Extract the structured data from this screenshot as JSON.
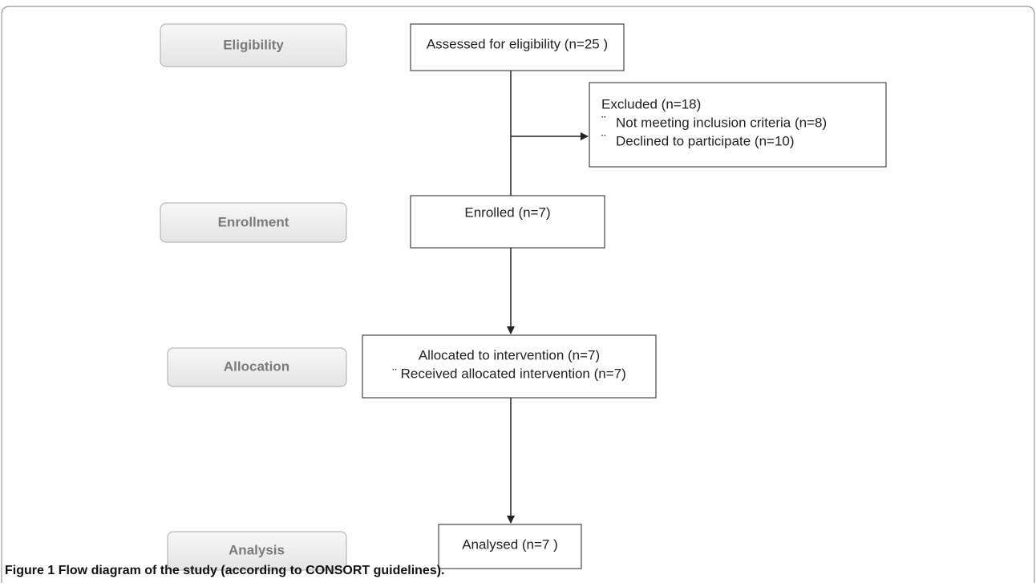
{
  "stages": [
    {
      "label": "Eligibility"
    },
    {
      "label": "Enrollment"
    },
    {
      "label": "Allocation"
    },
    {
      "label": "Analysis"
    }
  ],
  "boxes": {
    "assessed": {
      "lines": [
        "Assessed for eligibility (n=25 )"
      ]
    },
    "excluded": {
      "lines": [
        "Excluded  (n=18)",
        "¨",
        "Not meeting inclusion criteria (n=8)",
        "¨",
        "Declined to participate (n=10)"
      ]
    },
    "enrolled": {
      "lines": [
        "Enrolled (n=7)"
      ]
    },
    "allocated": {
      "lines": [
        "Allocated to intervention (n=7)",
        "¨ Received allocated intervention (n=7)"
      ]
    },
    "analysed": {
      "lines": [
        "Analysed  (n=7 )"
      ]
    }
  },
  "caption": {
    "label": "Figure 1",
    "text": "Flow diagram of the study (according to CONSORT guidelines)."
  }
}
